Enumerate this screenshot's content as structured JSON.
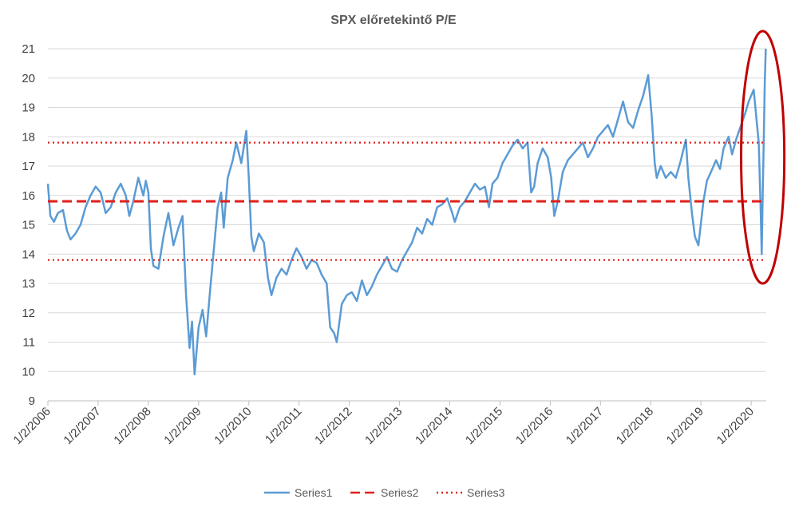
{
  "chart_data": {
    "type": "line",
    "title": "SPX előretekintő P/E",
    "xlabel": "",
    "ylabel": "",
    "ylim": [
      9,
      21
    ],
    "yticks": [
      9,
      10,
      11,
      12,
      13,
      14,
      15,
      16,
      17,
      18,
      19,
      20,
      21
    ],
    "xlim": [
      2006.0,
      2020.3
    ],
    "xticks": [
      {
        "label": "1/2/2006",
        "x": 2006.0
      },
      {
        "label": "1/2/2007",
        "x": 2007.0
      },
      {
        "label": "1/2/2008",
        "x": 2008.0
      },
      {
        "label": "1/2/2009",
        "x": 2009.0
      },
      {
        "label": "1/2/2010",
        "x": 2010.0
      },
      {
        "label": "1/2/2011",
        "x": 2011.0
      },
      {
        "label": "1/2/2012",
        "x": 2012.0
      },
      {
        "label": "1/2/2013",
        "x": 2013.0
      },
      {
        "label": "1/2/2014",
        "x": 2014.0
      },
      {
        "label": "1/2/2015",
        "x": 2015.0
      },
      {
        "label": "1/2/2016",
        "x": 2016.0
      },
      {
        "label": "1/2/2017",
        "x": 2017.0
      },
      {
        "label": "1/2/2018",
        "x": 2018.0
      },
      {
        "label": "1/2/2019",
        "x": 2019.0
      },
      {
        "label": "1/2/2020",
        "x": 2020.0
      }
    ],
    "grid": true,
    "legend_position": "bottom",
    "series": [
      {
        "name": "Series1",
        "color": "#5b9bd5",
        "style": "solid",
        "points": [
          [
            2006.0,
            16.4
          ],
          [
            2006.05,
            15.3
          ],
          [
            2006.12,
            15.1
          ],
          [
            2006.2,
            15.4
          ],
          [
            2006.3,
            15.5
          ],
          [
            2006.38,
            14.8
          ],
          [
            2006.45,
            14.5
          ],
          [
            2006.55,
            14.7
          ],
          [
            2006.65,
            15.0
          ],
          [
            2006.75,
            15.6
          ],
          [
            2006.85,
            16.0
          ],
          [
            2006.95,
            16.3
          ],
          [
            2007.05,
            16.1
          ],
          [
            2007.15,
            15.4
          ],
          [
            2007.25,
            15.6
          ],
          [
            2007.35,
            16.1
          ],
          [
            2007.45,
            16.4
          ],
          [
            2007.55,
            16.0
          ],
          [
            2007.62,
            15.3
          ],
          [
            2007.7,
            15.8
          ],
          [
            2007.8,
            16.6
          ],
          [
            2007.9,
            16.0
          ],
          [
            2007.95,
            16.5
          ],
          [
            2008.0,
            16.1
          ],
          [
            2008.05,
            14.2
          ],
          [
            2008.1,
            13.6
          ],
          [
            2008.2,
            13.5
          ],
          [
            2008.3,
            14.6
          ],
          [
            2008.4,
            15.4
          ],
          [
            2008.5,
            14.3
          ],
          [
            2008.6,
            14.9
          ],
          [
            2008.68,
            15.3
          ],
          [
            2008.75,
            12.6
          ],
          [
            2008.82,
            10.8
          ],
          [
            2008.87,
            11.7
          ],
          [
            2008.92,
            9.9
          ],
          [
            2009.0,
            11.5
          ],
          [
            2009.08,
            12.1
          ],
          [
            2009.15,
            11.2
          ],
          [
            2009.22,
            12.6
          ],
          [
            2009.3,
            14.1
          ],
          [
            2009.38,
            15.6
          ],
          [
            2009.45,
            16.1
          ],
          [
            2009.5,
            14.9
          ],
          [
            2009.58,
            16.6
          ],
          [
            2009.68,
            17.2
          ],
          [
            2009.75,
            17.8
          ],
          [
            2009.85,
            17.1
          ],
          [
            2009.95,
            18.2
          ],
          [
            2010.0,
            16.6
          ],
          [
            2010.05,
            14.6
          ],
          [
            2010.1,
            14.1
          ],
          [
            2010.2,
            14.7
          ],
          [
            2010.3,
            14.4
          ],
          [
            2010.38,
            13.2
          ],
          [
            2010.45,
            12.6
          ],
          [
            2010.55,
            13.2
          ],
          [
            2010.65,
            13.5
          ],
          [
            2010.75,
            13.3
          ],
          [
            2010.85,
            13.8
          ],
          [
            2010.95,
            14.2
          ],
          [
            2011.05,
            13.9
          ],
          [
            2011.15,
            13.5
          ],
          [
            2011.25,
            13.8
          ],
          [
            2011.35,
            13.7
          ],
          [
            2011.45,
            13.3
          ],
          [
            2011.55,
            13.0
          ],
          [
            2011.62,
            11.5
          ],
          [
            2011.7,
            11.3
          ],
          [
            2011.75,
            11.0
          ],
          [
            2011.85,
            12.3
          ],
          [
            2011.95,
            12.6
          ],
          [
            2012.05,
            12.7
          ],
          [
            2012.15,
            12.4
          ],
          [
            2012.25,
            13.1
          ],
          [
            2012.35,
            12.6
          ],
          [
            2012.45,
            12.9
          ],
          [
            2012.55,
            13.3
          ],
          [
            2012.65,
            13.6
          ],
          [
            2012.75,
            13.9
          ],
          [
            2012.85,
            13.5
          ],
          [
            2012.95,
            13.4
          ],
          [
            2013.05,
            13.8
          ],
          [
            2013.15,
            14.1
          ],
          [
            2013.25,
            14.4
          ],
          [
            2013.35,
            14.9
          ],
          [
            2013.45,
            14.7
          ],
          [
            2013.55,
            15.2
          ],
          [
            2013.65,
            15.0
          ],
          [
            2013.75,
            15.6
          ],
          [
            2013.85,
            15.7
          ],
          [
            2013.95,
            15.9
          ],
          [
            2014.05,
            15.4
          ],
          [
            2014.1,
            15.1
          ],
          [
            2014.2,
            15.6
          ],
          [
            2014.3,
            15.8
          ],
          [
            2014.4,
            16.1
          ],
          [
            2014.5,
            16.4
          ],
          [
            2014.6,
            16.2
          ],
          [
            2014.7,
            16.3
          ],
          [
            2014.78,
            15.6
          ],
          [
            2014.85,
            16.4
          ],
          [
            2014.95,
            16.6
          ],
          [
            2015.05,
            17.1
          ],
          [
            2015.15,
            17.4
          ],
          [
            2015.25,
            17.7
          ],
          [
            2015.35,
            17.9
          ],
          [
            2015.45,
            17.6
          ],
          [
            2015.55,
            17.8
          ],
          [
            2015.62,
            16.1
          ],
          [
            2015.68,
            16.3
          ],
          [
            2015.75,
            17.1
          ],
          [
            2015.85,
            17.6
          ],
          [
            2015.95,
            17.3
          ],
          [
            2016.02,
            16.6
          ],
          [
            2016.08,
            15.3
          ],
          [
            2016.15,
            15.8
          ],
          [
            2016.25,
            16.8
          ],
          [
            2016.35,
            17.2
          ],
          [
            2016.45,
            17.4
          ],
          [
            2016.55,
            17.6
          ],
          [
            2016.65,
            17.8
          ],
          [
            2016.75,
            17.3
          ],
          [
            2016.85,
            17.6
          ],
          [
            2016.95,
            18.0
          ],
          [
            2017.05,
            18.2
          ],
          [
            2017.15,
            18.4
          ],
          [
            2017.25,
            18.0
          ],
          [
            2017.35,
            18.6
          ],
          [
            2017.45,
            19.2
          ],
          [
            2017.55,
            18.5
          ],
          [
            2017.65,
            18.3
          ],
          [
            2017.75,
            18.9
          ],
          [
            2017.85,
            19.4
          ],
          [
            2017.95,
            20.1
          ],
          [
            2018.02,
            18.7
          ],
          [
            2018.08,
            17.1
          ],
          [
            2018.12,
            16.6
          ],
          [
            2018.2,
            17.0
          ],
          [
            2018.3,
            16.6
          ],
          [
            2018.4,
            16.8
          ],
          [
            2018.5,
            16.6
          ],
          [
            2018.6,
            17.2
          ],
          [
            2018.7,
            17.9
          ],
          [
            2018.75,
            16.6
          ],
          [
            2018.82,
            15.4
          ],
          [
            2018.88,
            14.6
          ],
          [
            2018.95,
            14.3
          ],
          [
            2019.05,
            15.8
          ],
          [
            2019.12,
            16.5
          ],
          [
            2019.2,
            16.8
          ],
          [
            2019.3,
            17.2
          ],
          [
            2019.38,
            16.9
          ],
          [
            2019.45,
            17.6
          ],
          [
            2019.55,
            18.0
          ],
          [
            2019.62,
            17.4
          ],
          [
            2019.7,
            17.9
          ],
          [
            2019.8,
            18.4
          ],
          [
            2019.88,
            18.8
          ],
          [
            2019.95,
            19.2
          ],
          [
            2020.0,
            19.4
          ],
          [
            2020.05,
            19.6
          ],
          [
            2020.1,
            18.7
          ],
          [
            2020.15,
            17.8
          ],
          [
            2020.19,
            15.4
          ],
          [
            2020.21,
            14.0
          ],
          [
            2020.23,
            16.1
          ],
          [
            2020.25,
            17.9
          ],
          [
            2020.27,
            19.8
          ],
          [
            2020.29,
            21.0
          ]
        ]
      },
      {
        "name": "Series2",
        "color": "#e0201b",
        "style": "dashed",
        "points": [
          [
            2006.0,
            15.8
          ],
          [
            2020.3,
            15.8
          ]
        ]
      },
      {
        "name": "Series3",
        "color": "#e0201b",
        "style": "dotted",
        "points": [
          [
            2006.0,
            17.8
          ],
          [
            2020.3,
            17.8
          ]
        ]
      },
      {
        "name": "",
        "color": "#e0201b",
        "style": "dotted",
        "points": [
          [
            2006.0,
            13.8
          ],
          [
            2020.3,
            13.8
          ]
        ]
      }
    ],
    "annotations": [
      {
        "type": "ellipse",
        "color": "#c00000",
        "cx": 2020.23,
        "cy": 17.3,
        "rx_years": 0.43,
        "ry_units": 4.3
      }
    ]
  }
}
